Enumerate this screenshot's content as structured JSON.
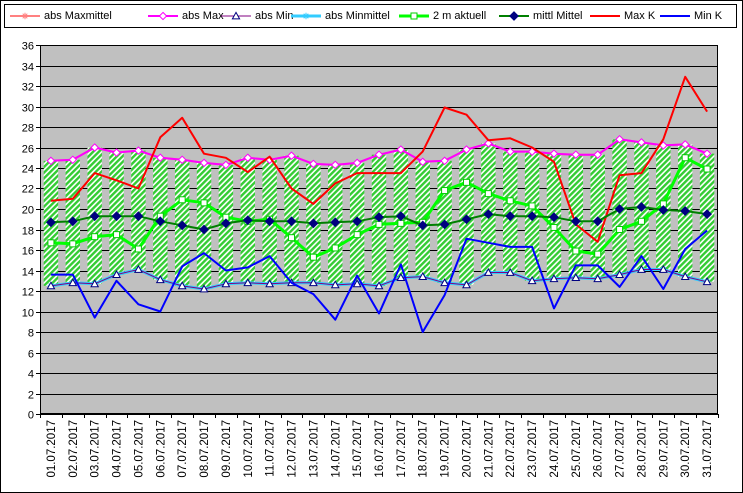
{
  "chart_data": {
    "type": "line",
    "categories": [
      "01.07.2017",
      "02.07.2017",
      "03.07.2017",
      "04.07.2017",
      "05.07.2017",
      "06.07.2017",
      "07.07.2017",
      "08.07.2017",
      "09.07.2017",
      "10.07.2017",
      "11.07.2017",
      "12.07.2017",
      "13.07.2017",
      "14.07.2017",
      "15.07.2017",
      "16.07.2017",
      "17.07.2017",
      "18.07.2017",
      "19.07.2017",
      "20.07.2017",
      "21.07.2017",
      "22.07.2017",
      "23.07.2017",
      "24.07.2017",
      "25.07.2017",
      "26.07.2017",
      "27.07.2017",
      "28.07.2017",
      "29.07.2017",
      "30.07.2017",
      "31.07.2017"
    ],
    "ylim": [
      0,
      36
    ],
    "yticks": [
      0,
      2,
      4,
      6,
      8,
      10,
      12,
      14,
      16,
      18,
      20,
      22,
      24,
      26,
      28,
      30,
      32,
      34,
      36
    ],
    "grid": true,
    "legend_position": "top",
    "background_color": "#C0C0C0",
    "range_bars": {
      "color": "#33CC33",
      "low": [
        12.5,
        12.8,
        12.7,
        13.6,
        14.1,
        13.1,
        12.5,
        12.2,
        12.7,
        12.8,
        12.7,
        12.8,
        12.8,
        12.6,
        12.7,
        12.5,
        13.3,
        13.4,
        12.8,
        12.6,
        13.8,
        13.8,
        13.0,
        13.2,
        13.3,
        13.2,
        13.6,
        14.1,
        14.1,
        13.4,
        12.9
      ],
      "high": [
        24.7,
        24.8,
        26.0,
        25.5,
        25.7,
        25.0,
        24.8,
        24.5,
        24.3,
        25.0,
        24.8,
        25.2,
        24.4,
        24.3,
        24.5,
        25.3,
        25.8,
        24.6,
        24.7,
        25.8,
        26.4,
        25.6,
        25.6,
        25.4,
        25.3,
        25.3,
        26.8,
        26.5,
        26.2,
        26.3,
        25.4
      ]
    },
    "series": [
      {
        "name": "abs Maxmittel",
        "color": "#FF8080",
        "marker": "asterisk",
        "marker_color": "#FF8080",
        "values": [
          24.7,
          24.8,
          26.0,
          25.5,
          25.7,
          25.0,
          24.8,
          24.5,
          24.3,
          25.0,
          24.8,
          25.2,
          24.4,
          24.3,
          24.5,
          25.3,
          25.8,
          24.6,
          24.7,
          25.8,
          26.4,
          25.6,
          25.6,
          25.4,
          25.3,
          25.3,
          26.8,
          26.5,
          26.2,
          26.3,
          25.4
        ]
      },
      {
        "name": "abs Max",
        "color": "#FF00FF",
        "marker": "diamond-open",
        "marker_color": "#FF00FF",
        "values": [
          24.7,
          24.8,
          26.0,
          25.5,
          25.7,
          25.0,
          24.8,
          24.5,
          24.3,
          25.0,
          24.8,
          25.2,
          24.4,
          24.3,
          24.5,
          25.3,
          25.8,
          24.6,
          24.7,
          25.8,
          26.4,
          25.6,
          25.6,
          25.4,
          25.3,
          25.3,
          26.8,
          26.5,
          26.2,
          26.3,
          25.4
        ]
      },
      {
        "name": "abs Min",
        "color": "#800080",
        "marker": "triangle-open",
        "marker_color": "#000080",
        "values": [
          12.5,
          12.8,
          12.7,
          13.6,
          14.1,
          13.1,
          12.5,
          12.2,
          12.7,
          12.8,
          12.7,
          12.8,
          12.8,
          12.6,
          12.7,
          12.5,
          13.3,
          13.4,
          12.8,
          12.6,
          13.8,
          13.8,
          13.0,
          13.2,
          13.3,
          13.2,
          13.6,
          14.1,
          14.1,
          13.4,
          12.9
        ]
      },
      {
        "name": "abs Minmittel",
        "color": "#33CCFF",
        "marker": "asterisk",
        "marker_color": "#33CCFF",
        "values": [
          12.5,
          12.8,
          12.7,
          13.6,
          14.1,
          13.1,
          12.5,
          12.2,
          12.7,
          12.8,
          12.7,
          12.8,
          12.8,
          12.6,
          12.7,
          12.5,
          13.3,
          13.4,
          12.8,
          12.6,
          13.8,
          13.8,
          13.0,
          13.2,
          13.3,
          13.2,
          13.6,
          14.1,
          14.1,
          13.4,
          12.9
        ]
      },
      {
        "name": "2 m aktuell",
        "color": "#00FF00",
        "marker": "square-open",
        "marker_color": "#00CC00",
        "values": [
          16.7,
          16.6,
          17.3,
          17.5,
          16.1,
          19.3,
          20.9,
          20.6,
          19.2,
          18.8,
          19.0,
          17.2,
          15.3,
          16.2,
          17.5,
          18.5,
          18.6,
          18.7,
          21.8,
          22.6,
          21.5,
          20.8,
          20.3,
          18.2,
          15.9,
          15.6,
          18.0,
          18.8,
          20.5,
          25.0,
          23.9
        ]
      },
      {
        "name": "mittl Mittel",
        "color": "#008000",
        "marker": "diamond-filled",
        "marker_color": "#000080",
        "values": [
          18.7,
          18.8,
          19.3,
          19.3,
          19.3,
          18.8,
          18.4,
          18.0,
          18.6,
          18.9,
          18.8,
          18.8,
          18.6,
          18.7,
          18.8,
          19.2,
          19.3,
          18.4,
          18.5,
          19.0,
          19.5,
          19.3,
          19.3,
          19.2,
          18.8,
          18.8,
          20.0,
          20.2,
          19.9,
          19.8,
          19.5
        ]
      },
      {
        "name": "Max K",
        "color": "#FF0000",
        "marker": "none",
        "marker_color": "#FF0000",
        "values": [
          20.8,
          21.0,
          23.5,
          22.8,
          22.0,
          27.0,
          28.9,
          25.4,
          25.0,
          23.6,
          25.1,
          22.0,
          20.5,
          22.5,
          23.5,
          23.5,
          23.5,
          25.6,
          29.9,
          29.2,
          26.7,
          26.9,
          26.0,
          24.6,
          18.5,
          16.8,
          23.3,
          23.5,
          26.8,
          32.9,
          29.5
        ]
      },
      {
        "name": "Min K",
        "color": "#0000FF",
        "marker": "none",
        "marker_color": "#0000FF",
        "values": [
          13.6,
          13.6,
          9.4,
          13.0,
          10.7,
          10.0,
          14.4,
          15.7,
          14.0,
          14.3,
          15.4,
          12.8,
          11.7,
          9.2,
          13.5,
          9.8,
          14.6,
          8.0,
          11.6,
          17.1,
          16.7,
          16.3,
          16.3,
          10.3,
          14.5,
          14.5,
          12.4,
          15.4,
          12.2,
          16.1,
          17.9
        ]
      }
    ]
  }
}
